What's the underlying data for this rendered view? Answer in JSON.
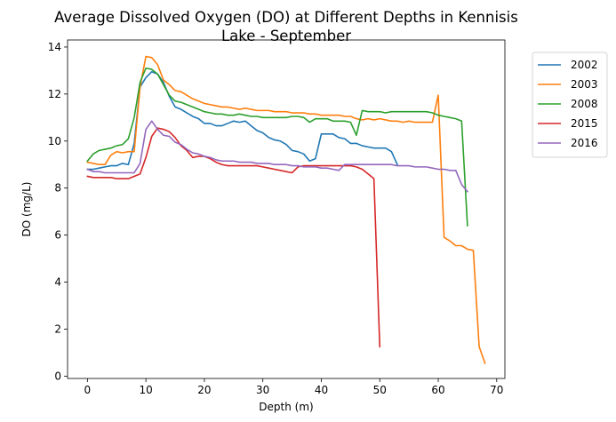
{
  "chart_data": {
    "type": "line",
    "title": "Average Dissolved Oxygen (DO) at Different Depths in Kennisis Lake - September",
    "title_lines": [
      "Average Dissolved Oxygen (DO) at Different Depths in Kennisis",
      "Lake - September"
    ],
    "xlabel": "Depth (m)",
    "ylabel": "DO (mg/L)",
    "xlim": [
      -3.4,
      71.4
    ],
    "ylim": [
      -0.1,
      14.3
    ],
    "xticks": [
      0,
      10,
      20,
      30,
      40,
      50,
      60,
      70
    ],
    "yticks": [
      0,
      2,
      4,
      6,
      8,
      10,
      12,
      14
    ],
    "grid": false,
    "legend_placement": "outside-upper-right",
    "series": [
      {
        "name": "2002",
        "color": "#1f77b4",
        "points": [
          [
            0,
            8.8
          ],
          [
            1,
            8.8
          ],
          [
            2,
            8.85
          ],
          [
            3,
            8.9
          ],
          [
            4,
            8.95
          ],
          [
            5,
            8.95
          ],
          [
            6,
            9.05
          ],
          [
            7,
            9.0
          ],
          [
            8,
            9.9
          ],
          [
            9,
            12.3
          ],
          [
            10,
            12.7
          ],
          [
            11,
            12.95
          ],
          [
            12,
            12.85
          ],
          [
            13,
            12.5
          ],
          [
            14,
            11.9
          ],
          [
            15,
            11.45
          ],
          [
            16,
            11.35
          ],
          [
            17,
            11.2
          ],
          [
            18,
            11.05
          ],
          [
            19,
            10.95
          ],
          [
            20,
            10.75
          ],
          [
            21,
            10.75
          ],
          [
            22,
            10.65
          ],
          [
            23,
            10.65
          ],
          [
            24,
            10.75
          ],
          [
            25,
            10.85
          ],
          [
            26,
            10.8
          ],
          [
            27,
            10.85
          ],
          [
            28,
            10.65
          ],
          [
            29,
            10.45
          ],
          [
            30,
            10.35
          ],
          [
            31,
            10.15
          ],
          [
            32,
            10.05
          ],
          [
            33,
            10.0
          ],
          [
            34,
            9.85
          ],
          [
            35,
            9.6
          ],
          [
            36,
            9.55
          ],
          [
            37,
            9.45
          ],
          [
            38,
            9.15
          ],
          [
            39,
            9.25
          ],
          [
            40,
            10.3
          ],
          [
            41,
            10.3
          ],
          [
            42,
            10.3
          ],
          [
            43,
            10.15
          ],
          [
            44,
            10.1
          ],
          [
            45,
            9.9
          ],
          [
            46,
            9.9
          ],
          [
            47,
            9.8
          ],
          [
            48,
            9.75
          ],
          [
            49,
            9.7
          ],
          [
            50,
            9.7
          ],
          [
            51,
            9.7
          ],
          [
            52,
            9.55
          ],
          [
            53,
            9.0
          ]
        ]
      },
      {
        "name": "2003",
        "color": "#ff7f0e",
        "points": [
          [
            0,
            9.1
          ],
          [
            1,
            9.05
          ],
          [
            2,
            9.0
          ],
          [
            3,
            9.0
          ],
          [
            4,
            9.4
          ],
          [
            5,
            9.55
          ],
          [
            6,
            9.5
          ],
          [
            7,
            9.55
          ],
          [
            8,
            9.55
          ],
          [
            9,
            12.3
          ],
          [
            10,
            13.6
          ],
          [
            11,
            13.55
          ],
          [
            12,
            13.25
          ],
          [
            13,
            12.6
          ],
          [
            14,
            12.4
          ],
          [
            15,
            12.15
          ],
          [
            16,
            12.1
          ],
          [
            17,
            11.95
          ],
          [
            18,
            11.8
          ],
          [
            19,
            11.7
          ],
          [
            20,
            11.6
          ],
          [
            21,
            11.55
          ],
          [
            22,
            11.5
          ],
          [
            23,
            11.45
          ],
          [
            24,
            11.45
          ],
          [
            25,
            11.4
          ],
          [
            26,
            11.35
          ],
          [
            27,
            11.4
          ],
          [
            28,
            11.35
          ],
          [
            29,
            11.3
          ],
          [
            30,
            11.3
          ],
          [
            31,
            11.3
          ],
          [
            32,
            11.25
          ],
          [
            33,
            11.25
          ],
          [
            34,
            11.25
          ],
          [
            35,
            11.2
          ],
          [
            36,
            11.2
          ],
          [
            37,
            11.2
          ],
          [
            38,
            11.15
          ],
          [
            39,
            11.15
          ],
          [
            40,
            11.1
          ],
          [
            41,
            11.1
          ],
          [
            42,
            11.1
          ],
          [
            43,
            11.1
          ],
          [
            44,
            11.05
          ],
          [
            45,
            11.05
          ],
          [
            46,
            10.95
          ],
          [
            47,
            10.9
          ],
          [
            48,
            10.95
          ],
          [
            49,
            10.9
          ],
          [
            50,
            10.95
          ],
          [
            51,
            10.9
          ],
          [
            52,
            10.85
          ],
          [
            53,
            10.85
          ],
          [
            54,
            10.8
          ],
          [
            55,
            10.85
          ],
          [
            56,
            10.8
          ],
          [
            57,
            10.8
          ],
          [
            58,
            10.8
          ],
          [
            59,
            10.8
          ],
          [
            60,
            11.95
          ],
          [
            61,
            5.9
          ],
          [
            62,
            5.75
          ],
          [
            63,
            5.55
          ],
          [
            64,
            5.55
          ],
          [
            65,
            5.4
          ],
          [
            66,
            5.35
          ],
          [
            67,
            1.25
          ],
          [
            68,
            0.55
          ]
        ]
      },
      {
        "name": "2008",
        "color": "#2ca02c",
        "points": [
          [
            0,
            9.15
          ],
          [
            1,
            9.45
          ],
          [
            2,
            9.6
          ],
          [
            3,
            9.65
          ],
          [
            4,
            9.7
          ],
          [
            5,
            9.8
          ],
          [
            6,
            9.85
          ],
          [
            7,
            10.1
          ],
          [
            8,
            11.0
          ],
          [
            9,
            12.5
          ],
          [
            10,
            13.1
          ],
          [
            11,
            13.05
          ],
          [
            12,
            12.85
          ],
          [
            13,
            12.4
          ],
          [
            14,
            11.95
          ],
          [
            15,
            11.7
          ],
          [
            16,
            11.65
          ],
          [
            17,
            11.55
          ],
          [
            18,
            11.45
          ],
          [
            19,
            11.35
          ],
          [
            20,
            11.25
          ],
          [
            21,
            11.2
          ],
          [
            22,
            11.15
          ],
          [
            23,
            11.15
          ],
          [
            24,
            11.1
          ],
          [
            25,
            11.1
          ],
          [
            26,
            11.15
          ],
          [
            27,
            11.1
          ],
          [
            28,
            11.05
          ],
          [
            29,
            11.05
          ],
          [
            30,
            11.0
          ],
          [
            31,
            11.0
          ],
          [
            32,
            11.0
          ],
          [
            33,
            11.0
          ],
          [
            34,
            11.0
          ],
          [
            35,
            11.05
          ],
          [
            36,
            11.05
          ],
          [
            37,
            11.0
          ],
          [
            38,
            10.8
          ],
          [
            39,
            10.95
          ],
          [
            40,
            10.95
          ],
          [
            41,
            10.95
          ],
          [
            42,
            10.85
          ],
          [
            43,
            10.85
          ],
          [
            44,
            10.85
          ],
          [
            45,
            10.8
          ],
          [
            46,
            10.25
          ],
          [
            47,
            11.3
          ],
          [
            48,
            11.25
          ],
          [
            49,
            11.25
          ],
          [
            50,
            11.25
          ],
          [
            51,
            11.2
          ],
          [
            52,
            11.25
          ],
          [
            53,
            11.25
          ],
          [
            54,
            11.25
          ],
          [
            55,
            11.25
          ],
          [
            56,
            11.25
          ],
          [
            57,
            11.25
          ],
          [
            58,
            11.25
          ],
          [
            59,
            11.2
          ],
          [
            60,
            11.1
          ],
          [
            61,
            11.05
          ],
          [
            62,
            11.0
          ],
          [
            63,
            10.95
          ],
          [
            64,
            10.85
          ],
          [
            65,
            6.4
          ]
        ]
      },
      {
        "name": "2015",
        "color": "#d62728",
        "points": [
          [
            0,
            8.5
          ],
          [
            1,
            8.45
          ],
          [
            2,
            8.45
          ],
          [
            3,
            8.45
          ],
          [
            4,
            8.45
          ],
          [
            5,
            8.4
          ],
          [
            6,
            8.4
          ],
          [
            7,
            8.4
          ],
          [
            8,
            8.5
          ],
          [
            9,
            8.6
          ],
          [
            10,
            9.3
          ],
          [
            11,
            10.2
          ],
          [
            12,
            10.55
          ],
          [
            13,
            10.5
          ],
          [
            14,
            10.4
          ],
          [
            15,
            10.15
          ],
          [
            16,
            9.8
          ],
          [
            17,
            9.6
          ],
          [
            18,
            9.3
          ],
          [
            19,
            9.35
          ],
          [
            20,
            9.35
          ],
          [
            21,
            9.25
          ],
          [
            22,
            9.1
          ],
          [
            23,
            9.0
          ],
          [
            24,
            8.95
          ],
          [
            25,
            8.95
          ],
          [
            26,
            8.95
          ],
          [
            27,
            8.95
          ],
          [
            28,
            8.95
          ],
          [
            29,
            8.95
          ],
          [
            30,
            8.9
          ],
          [
            31,
            8.85
          ],
          [
            32,
            8.8
          ],
          [
            33,
            8.75
          ],
          [
            34,
            8.7
          ],
          [
            35,
            8.65
          ],
          [
            36,
            8.9
          ],
          [
            37,
            8.95
          ],
          [
            38,
            8.95
          ],
          [
            39,
            8.95
          ],
          [
            40,
            8.95
          ],
          [
            41,
            8.95
          ],
          [
            42,
            8.95
          ],
          [
            43,
            8.95
          ],
          [
            44,
            8.95
          ],
          [
            45,
            8.95
          ],
          [
            46,
            8.9
          ],
          [
            47,
            8.8
          ],
          [
            48,
            8.6
          ],
          [
            49,
            8.4
          ],
          [
            50,
            1.25
          ]
        ]
      },
      {
        "name": "2016",
        "color": "#9467bd",
        "points": [
          [
            0,
            8.8
          ],
          [
            1,
            8.7
          ],
          [
            2,
            8.7
          ],
          [
            3,
            8.65
          ],
          [
            4,
            8.65
          ],
          [
            5,
            8.65
          ],
          [
            6,
            8.65
          ],
          [
            7,
            8.65
          ],
          [
            8,
            8.65
          ],
          [
            9,
            9.05
          ],
          [
            10,
            10.5
          ],
          [
            11,
            10.85
          ],
          [
            12,
            10.5
          ],
          [
            13,
            10.25
          ],
          [
            14,
            10.2
          ],
          [
            15,
            9.95
          ],
          [
            16,
            9.85
          ],
          [
            17,
            9.65
          ],
          [
            18,
            9.5
          ],
          [
            19,
            9.45
          ],
          [
            20,
            9.35
          ],
          [
            21,
            9.3
          ],
          [
            22,
            9.2
          ],
          [
            23,
            9.15
          ],
          [
            24,
            9.15
          ],
          [
            25,
            9.15
          ],
          [
            26,
            9.1
          ],
          [
            27,
            9.1
          ],
          [
            28,
            9.1
          ],
          [
            29,
            9.05
          ],
          [
            30,
            9.05
          ],
          [
            31,
            9.05
          ],
          [
            32,
            9.0
          ],
          [
            33,
            9.0
          ],
          [
            34,
            9.0
          ],
          [
            35,
            8.95
          ],
          [
            36,
            8.95
          ],
          [
            37,
            8.9
          ],
          [
            38,
            8.9
          ],
          [
            39,
            8.9
          ],
          [
            40,
            8.85
          ],
          [
            41,
            8.85
          ],
          [
            42,
            8.8
          ],
          [
            43,
            8.75
          ],
          [
            44,
            9.0
          ],
          [
            45,
            9.0
          ],
          [
            46,
            9.0
          ],
          [
            47,
            9.0
          ],
          [
            48,
            9.0
          ],
          [
            49,
            9.0
          ],
          [
            50,
            9.0
          ],
          [
            51,
            9.0
          ],
          [
            52,
            9.0
          ],
          [
            53,
            8.95
          ],
          [
            54,
            8.95
          ],
          [
            55,
            8.95
          ],
          [
            56,
            8.9
          ],
          [
            57,
            8.9
          ],
          [
            58,
            8.9
          ],
          [
            59,
            8.85
          ],
          [
            60,
            8.8
          ],
          [
            61,
            8.8
          ],
          [
            62,
            8.75
          ],
          [
            63,
            8.75
          ],
          [
            64,
            8.15
          ],
          [
            65,
            7.85
          ]
        ]
      }
    ]
  }
}
